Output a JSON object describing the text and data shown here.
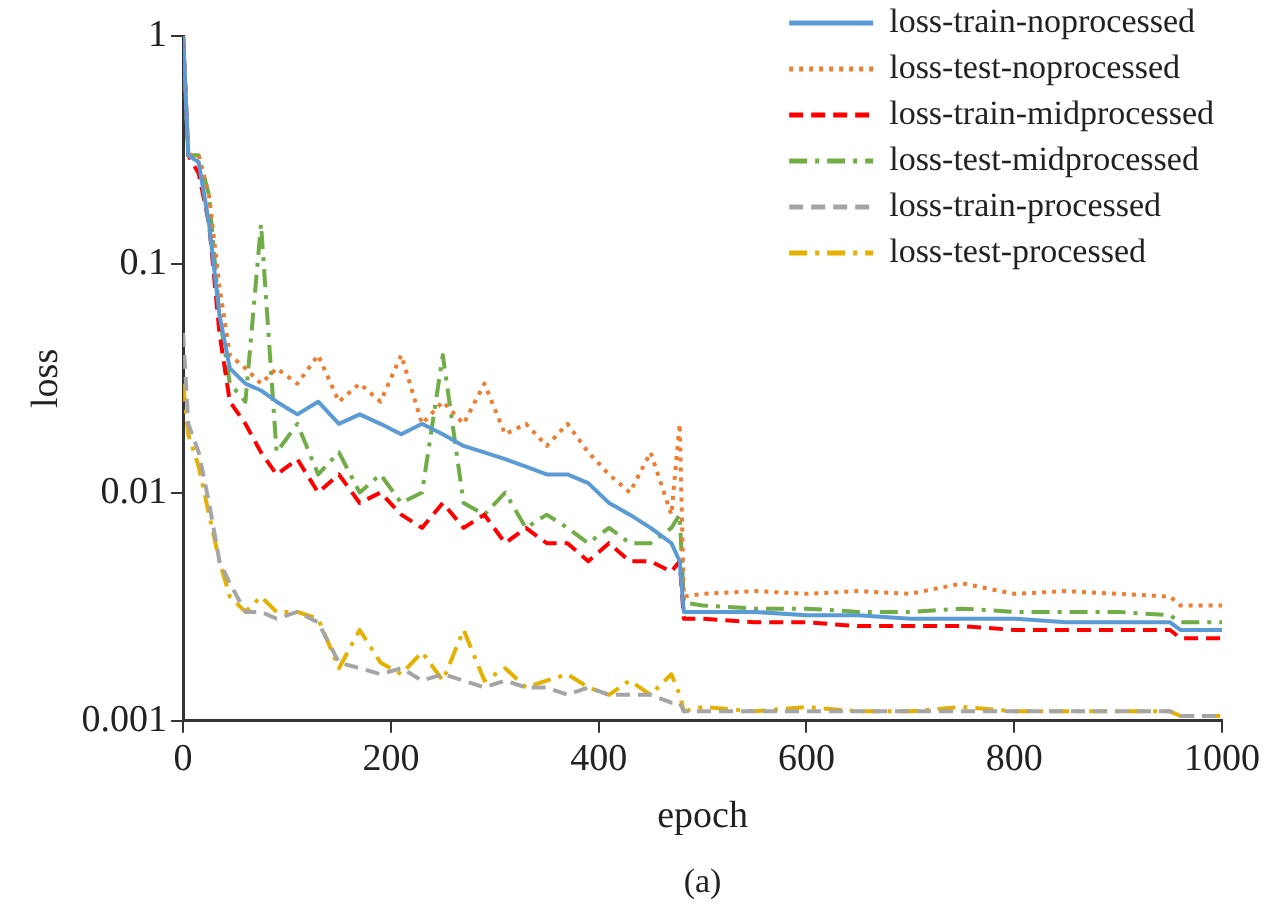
{
  "chart_data": {
    "type": "line",
    "xlabel": "epoch",
    "ylabel": "loss",
    "annotations": [
      "(a)"
    ],
    "log": "y",
    "legend": "top right",
    "grid": false,
    "marker": "none",
    "xlim": [
      0,
      1000
    ],
    "xticks": [
      0,
      200,
      400,
      600,
      800,
      1000
    ],
    "ylim": [
      0.001,
      1
    ],
    "yticks": [
      0.001,
      0.01,
      0.1,
      1
    ],
    "x": [
      0,
      5,
      15,
      25,
      35,
      45,
      60,
      75,
      90,
      110,
      130,
      150,
      170,
      190,
      210,
      230,
      250,
      270,
      290,
      310,
      330,
      350,
      370,
      390,
      410,
      430,
      450,
      470,
      478,
      482,
      500,
      550,
      600,
      650,
      700,
      750,
      800,
      850,
      900,
      950,
      960,
      970,
      1000
    ],
    "series": [
      {
        "name": "loss-train-noprocessed",
        "color": "#5b9bd5",
        "line_style": "solid",
        "values": [
          1,
          0.3,
          0.28,
          0.15,
          0.06,
          0.035,
          0.03,
          0.028,
          0.025,
          0.022,
          0.025,
          0.02,
          0.022,
          0.02,
          0.018,
          0.02,
          0.018,
          0.016,
          0.015,
          0.014,
          0.013,
          0.012,
          0.012,
          0.011,
          0.009,
          0.008,
          0.007,
          0.006,
          0.005,
          0.003,
          0.003,
          0.003,
          0.0029,
          0.0029,
          0.0028,
          0.0028,
          0.0028,
          0.0027,
          0.0027,
          0.0027,
          0.0025,
          0.0025,
          0.0025
        ]
      },
      {
        "name": "loss-test-noprocessed",
        "color": "#ed7d31",
        "line_style": "dotted",
        "values": [
          1,
          0.3,
          0.3,
          0.2,
          0.08,
          0.04,
          0.035,
          0.03,
          0.035,
          0.03,
          0.04,
          0.025,
          0.03,
          0.025,
          0.04,
          0.02,
          0.025,
          0.02,
          0.03,
          0.018,
          0.02,
          0.016,
          0.02,
          0.015,
          0.012,
          0.01,
          0.015,
          0.008,
          0.02,
          0.0035,
          0.0036,
          0.0037,
          0.0036,
          0.0037,
          0.0036,
          0.004,
          0.0036,
          0.0037,
          0.0036,
          0.0035,
          0.0032,
          0.0032,
          0.0032
        ]
      },
      {
        "name": "loss-train-midprocessed",
        "color": "#ff0000",
        "line_style": "dashed",
        "values": [
          1,
          0.3,
          0.25,
          0.15,
          0.05,
          0.025,
          0.02,
          0.015,
          0.012,
          0.014,
          0.01,
          0.012,
          0.009,
          0.01,
          0.008,
          0.007,
          0.009,
          0.007,
          0.008,
          0.006,
          0.007,
          0.006,
          0.006,
          0.005,
          0.006,
          0.005,
          0.005,
          0.0045,
          0.005,
          0.0028,
          0.0028,
          0.0027,
          0.0027,
          0.0026,
          0.0026,
          0.0026,
          0.0025,
          0.0025,
          0.0025,
          0.0025,
          0.0023,
          0.0023,
          0.0023
        ]
      },
      {
        "name": "loss-test-midprocessed",
        "color": "#70ad47",
        "line_style": "dashdot",
        "values": [
          1,
          0.3,
          0.3,
          0.2,
          0.06,
          0.03,
          0.025,
          0.15,
          0.015,
          0.02,
          0.012,
          0.015,
          0.01,
          0.012,
          0.009,
          0.01,
          0.04,
          0.009,
          0.008,
          0.01,
          0.007,
          0.008,
          0.007,
          0.006,
          0.007,
          0.006,
          0.006,
          0.007,
          0.008,
          0.0033,
          0.0032,
          0.0031,
          0.0031,
          0.003,
          0.003,
          0.0031,
          0.003,
          0.003,
          0.003,
          0.0029,
          0.0027,
          0.0027,
          0.0027
        ]
      },
      {
        "name": "loss-train-processed",
        "color": "#a5a5a5",
        "line_style": "dashed",
        "values": [
          0.05,
          0.02,
          0.015,
          0.009,
          0.005,
          0.004,
          0.003,
          0.003,
          0.0028,
          0.003,
          0.0027,
          0.0018,
          0.0017,
          0.0016,
          0.0017,
          0.0015,
          0.0016,
          0.0015,
          0.0014,
          0.0015,
          0.0014,
          0.0014,
          0.0013,
          0.0014,
          0.0013,
          0.0013,
          0.0013,
          0.0012,
          0.0012,
          0.0011,
          0.0011,
          0.0011,
          0.0011,
          0.0011,
          0.0011,
          0.0011,
          0.0011,
          0.0011,
          0.0011,
          0.0011,
          0.00105,
          0.00105,
          0.00105
        ]
      },
      {
        "name": "loss-test-processed",
        "color": "#e5b000",
        "line_style": "dashdot",
        "values": [
          0.03,
          0.018,
          0.013,
          0.008,
          0.005,
          0.0035,
          0.003,
          0.0035,
          0.003,
          0.003,
          0.0028,
          0.0017,
          0.0025,
          0.0018,
          0.0016,
          0.002,
          0.0015,
          0.0025,
          0.0015,
          0.0017,
          0.0014,
          0.0015,
          0.0016,
          0.0014,
          0.0013,
          0.0015,
          0.0013,
          0.0016,
          0.0013,
          0.0011,
          0.00115,
          0.0011,
          0.00115,
          0.0011,
          0.0011,
          0.00115,
          0.0011,
          0.0011,
          0.0011,
          0.0011,
          0.00105,
          0.00105,
          0.00105
        ]
      }
    ]
  }
}
